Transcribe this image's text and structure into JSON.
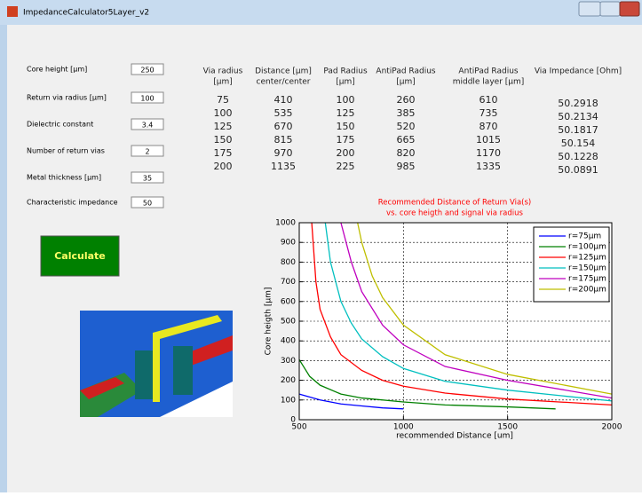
{
  "window": {
    "title": "ImpedanceCalculator5Layer_v2"
  },
  "inputs": [
    {
      "label": "Core height [µm]",
      "value": "250"
    },
    {
      "label": "Return via radius [µm]",
      "value": "100"
    },
    {
      "label": "Dielectric constant",
      "value": "3.4"
    },
    {
      "label": "Number of return vias",
      "value": "2"
    },
    {
      "label": "Metal thickness [µm]",
      "value": "35"
    },
    {
      "label": "Characteristic impedance",
      "value": "50"
    }
  ],
  "button": {
    "label": "Calculate"
  },
  "table": {
    "headers": [
      [
        "Via radius",
        "[µm]"
      ],
      [
        "Distance [µm]",
        "center/center"
      ],
      [
        "Pad Radius",
        "[µm]"
      ],
      [
        "AntiPad Radius",
        "[µm]"
      ],
      [
        "AntiPad Radius",
        "middle layer [µm]"
      ],
      [
        "Via Impedance [Ohm]"
      ]
    ],
    "columns": [
      [
        "75",
        "100",
        "125",
        "150",
        "175",
        "200"
      ],
      [
        "410",
        "535",
        "670",
        "815",
        "970",
        "1135"
      ],
      [
        "100",
        "125",
        "150",
        "175",
        "200",
        "225"
      ],
      [
        "260",
        "385",
        "520",
        "665",
        "820",
        "985"
      ],
      [
        "610",
        "735",
        "870",
        "1015",
        "1170",
        "1335"
      ],
      [
        "50.2918",
        "50.2134",
        "50.1817",
        "50.154",
        "50.1228",
        "50.0891"
      ]
    ]
  },
  "chart_data": {
    "type": "line",
    "title": [
      "Recommended Distance of Return Via(s)",
      "vs. core heigth and signal via radius"
    ],
    "x_label": "recommended Distance [um]",
    "y_label": "Core heigth [µm]",
    "xlim": [
      500,
      2000
    ],
    "ylim": [
      0,
      1000
    ],
    "xticks": [
      500,
      1000,
      1500,
      2000
    ],
    "yticks": [
      0,
      100,
      200,
      300,
      400,
      500,
      600,
      700,
      800,
      900,
      1000
    ],
    "grid": true,
    "legend": "upper-right",
    "series": [
      {
        "name": "r=75µm",
        "color": "#0000ff",
        "x": [
          500,
          600,
          700,
          800,
          900,
          1000
        ],
        "values": [
          130,
          100,
          80,
          70,
          60,
          55
        ]
      },
      {
        "name": "r=100µm",
        "color": "#008000",
        "x": [
          500,
          550,
          600,
          700,
          800,
          1000,
          1200,
          1500,
          1730
        ],
        "values": [
          305,
          220,
          175,
          130,
          110,
          90,
          75,
          65,
          55
        ]
      },
      {
        "name": "r=125µm",
        "color": "#ff0000",
        "x": [
          560,
          580,
          600,
          650,
          700,
          800,
          900,
          1000,
          1200,
          1500,
          2000
        ],
        "values": [
          1000,
          700,
          560,
          420,
          330,
          250,
          200,
          170,
          135,
          105,
          75
        ]
      },
      {
        "name": "r=150µm",
        "color": "#00bfbf",
        "x": [
          625,
          650,
          700,
          750,
          800,
          900,
          1000,
          1200,
          1500,
          2000
        ],
        "values": [
          1000,
          800,
          600,
          490,
          410,
          320,
          260,
          195,
          150,
          95
        ]
      },
      {
        "name": "r=175µm",
        "color": "#bf00bf",
        "x": [
          700,
          750,
          800,
          900,
          1000,
          1200,
          1500,
          2000
        ],
        "values": [
          1000,
          800,
          650,
          480,
          380,
          270,
          200,
          110
        ]
      },
      {
        "name": "r=200µm",
        "color": "#bfbf00",
        "x": [
          780,
          800,
          850,
          900,
          1000,
          1200,
          1500,
          2000
        ],
        "values": [
          1000,
          900,
          730,
          620,
          480,
          330,
          230,
          130
        ]
      }
    ]
  }
}
